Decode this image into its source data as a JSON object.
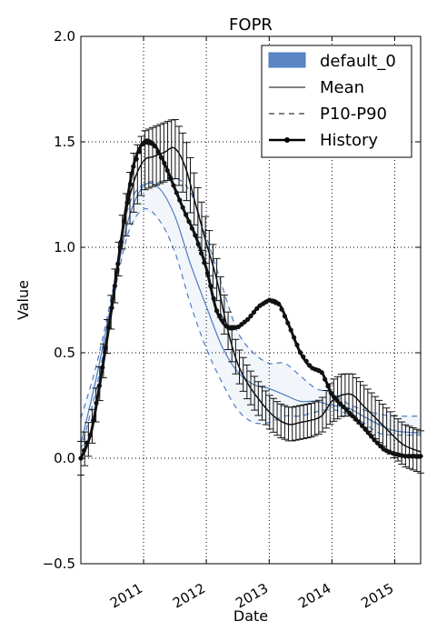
{
  "chart_data": {
    "type": "line",
    "title": "FOPR",
    "xlabel": "Date",
    "ylabel": "Value",
    "xlim": [
      "2010-01-01",
      "2015-06-01"
    ],
    "ylim": [
      -0.5,
      2.0
    ],
    "grid": true,
    "legend_position": "top-right",
    "xticks": [
      "2011",
      "2012",
      "2013",
      "2014",
      "2015"
    ],
    "yticks": [
      "−0.5",
      "0.0",
      "0.5",
      "1.0",
      "1.5",
      "2.0"
    ],
    "legend": [
      "default_0",
      "Mean",
      "P10-P90",
      "History"
    ],
    "colors": {
      "ensemble": "#4f7bbf",
      "fill": "#5b86c4",
      "history": "#111111"
    },
    "series": [
      {
        "name": "Mean",
        "x": [
          "2010-01-01",
          "2010-04-01",
          "2010-07-01",
          "2010-10-01",
          "2011-01-01",
          "2011-04-01",
          "2011-07-01",
          "2011-10-01",
          "2012-01-01",
          "2012-04-01",
          "2012-07-01",
          "2012-10-01",
          "2013-01-01",
          "2013-04-01",
          "2013-07-01",
          "2013-10-01",
          "2014-01-01",
          "2014-04-01",
          "2014-07-01",
          "2014-10-01",
          "2015-01-01",
          "2015-06-01"
        ],
        "y": [
          0.07,
          0.38,
          0.75,
          1.12,
          1.29,
          1.28,
          1.15,
          0.92,
          0.72,
          0.53,
          0.41,
          0.35,
          0.33,
          0.3,
          0.27,
          0.27,
          0.25,
          0.24,
          0.2,
          0.16,
          0.13,
          0.12
        ]
      },
      {
        "name": "P10",
        "x": [
          "2010-01-01",
          "2010-04-01",
          "2010-07-01",
          "2010-10-01",
          "2011-01-01",
          "2011-04-01",
          "2011-07-01",
          "2011-10-01",
          "2012-01-01",
          "2012-04-01",
          "2012-07-01",
          "2012-10-01",
          "2013-01-01",
          "2013-04-01",
          "2013-07-01",
          "2013-10-01",
          "2014-01-01",
          "2014-04-01",
          "2014-07-01",
          "2014-10-01",
          "2015-01-01",
          "2015-06-01"
        ],
        "y": [
          0.04,
          0.33,
          0.72,
          1.06,
          1.18,
          1.13,
          0.98,
          0.73,
          0.52,
          0.36,
          0.23,
          0.17,
          0.17,
          0.2,
          0.2,
          0.22,
          0.23,
          0.21,
          0.17,
          0.12,
          0.11,
          0.11
        ]
      },
      {
        "name": "P90",
        "x": [
          "2010-01-01",
          "2010-04-01",
          "2010-07-01",
          "2010-10-01",
          "2011-01-01",
          "2011-04-01",
          "2011-07-01",
          "2011-10-01",
          "2012-01-01",
          "2012-04-01",
          "2012-07-01",
          "2012-10-01",
          "2013-01-01",
          "2013-04-01",
          "2013-07-01",
          "2013-10-01",
          "2014-01-01",
          "2014-04-01",
          "2014-07-01",
          "2014-10-01",
          "2015-01-01",
          "2015-06-01"
        ],
        "y": [
          0.19,
          0.44,
          0.78,
          1.18,
          1.3,
          1.31,
          1.33,
          1.26,
          1.05,
          0.82,
          0.6,
          0.5,
          0.45,
          0.45,
          0.39,
          0.33,
          0.31,
          0.26,
          0.23,
          0.21,
          0.2,
          0.2
        ]
      },
      {
        "name": "History",
        "x": [
          "2010-01-01",
          "2010-03-01",
          "2010-05-01",
          "2010-07-01",
          "2010-09-01",
          "2010-11-01",
          "2011-01-01",
          "2011-03-01",
          "2011-05-01",
          "2011-07-01",
          "2011-09-01",
          "2011-11-01",
          "2012-01-01",
          "2012-03-01",
          "2012-05-01",
          "2012-07-01",
          "2012-09-01",
          "2012-11-01",
          "2013-01-01",
          "2013-03-01",
          "2013-05-01",
          "2013-07-01",
          "2013-09-01",
          "2013-11-01",
          "2014-01-01",
          "2014-03-01",
          "2014-05-01",
          "2014-07-01",
          "2014-09-01",
          "2014-11-01",
          "2015-01-01",
          "2015-03-01",
          "2015-06-01"
        ],
        "y": [
          0.0,
          0.12,
          0.4,
          0.72,
          1.08,
          1.38,
          1.5,
          1.49,
          1.4,
          1.28,
          1.16,
          1.05,
          0.9,
          0.7,
          0.62,
          0.62,
          0.66,
          0.72,
          0.75,
          0.73,
          0.62,
          0.5,
          0.43,
          0.41,
          0.3,
          0.25,
          0.2,
          0.15,
          0.09,
          0.04,
          0.02,
          0.01,
          0.01
        ]
      },
      {
        "name": "default_0",
        "x": [
          "2010-01-01",
          "2010-03-01",
          "2010-05-01",
          "2010-07-01",
          "2010-09-01",
          "2010-11-01",
          "2011-01-01",
          "2011-03-01",
          "2011-05-01",
          "2011-07-01",
          "2011-09-01",
          "2011-11-01",
          "2012-01-01",
          "2012-03-01",
          "2012-05-01",
          "2012-07-01",
          "2012-09-01",
          "2012-11-01",
          "2013-01-01",
          "2013-03-01",
          "2013-05-01",
          "2013-07-01",
          "2013-09-01",
          "2013-11-01",
          "2014-01-01",
          "2014-03-01",
          "2014-05-01",
          "2014-07-01",
          "2014-09-01",
          "2014-11-01",
          "2015-01-01",
          "2015-03-01",
          "2015-06-01"
        ],
        "y": [
          0.0,
          0.12,
          0.4,
          0.72,
          1.08,
          1.3,
          1.41,
          1.43,
          1.45,
          1.47,
          1.38,
          1.2,
          1.02,
          0.85,
          0.62,
          0.45,
          0.35,
          0.28,
          0.22,
          0.18,
          0.16,
          0.17,
          0.18,
          0.2,
          0.27,
          0.3,
          0.3,
          0.25,
          0.2,
          0.15,
          0.1,
          0.06,
          0.03
        ],
        "error": [
          0.08,
          0.08,
          0.08,
          0.08,
          0.08,
          0.14,
          0.14,
          0.14,
          0.14,
          0.14,
          0.14,
          0.12,
          0.11,
          0.1,
          0.09,
          0.08,
          0.08,
          0.08,
          0.08,
          0.08,
          0.08,
          0.08,
          0.08,
          0.08,
          0.1,
          0.1,
          0.1,
          0.1,
          0.1,
          0.1,
          0.1,
          0.1,
          0.1
        ]
      }
    ]
  }
}
